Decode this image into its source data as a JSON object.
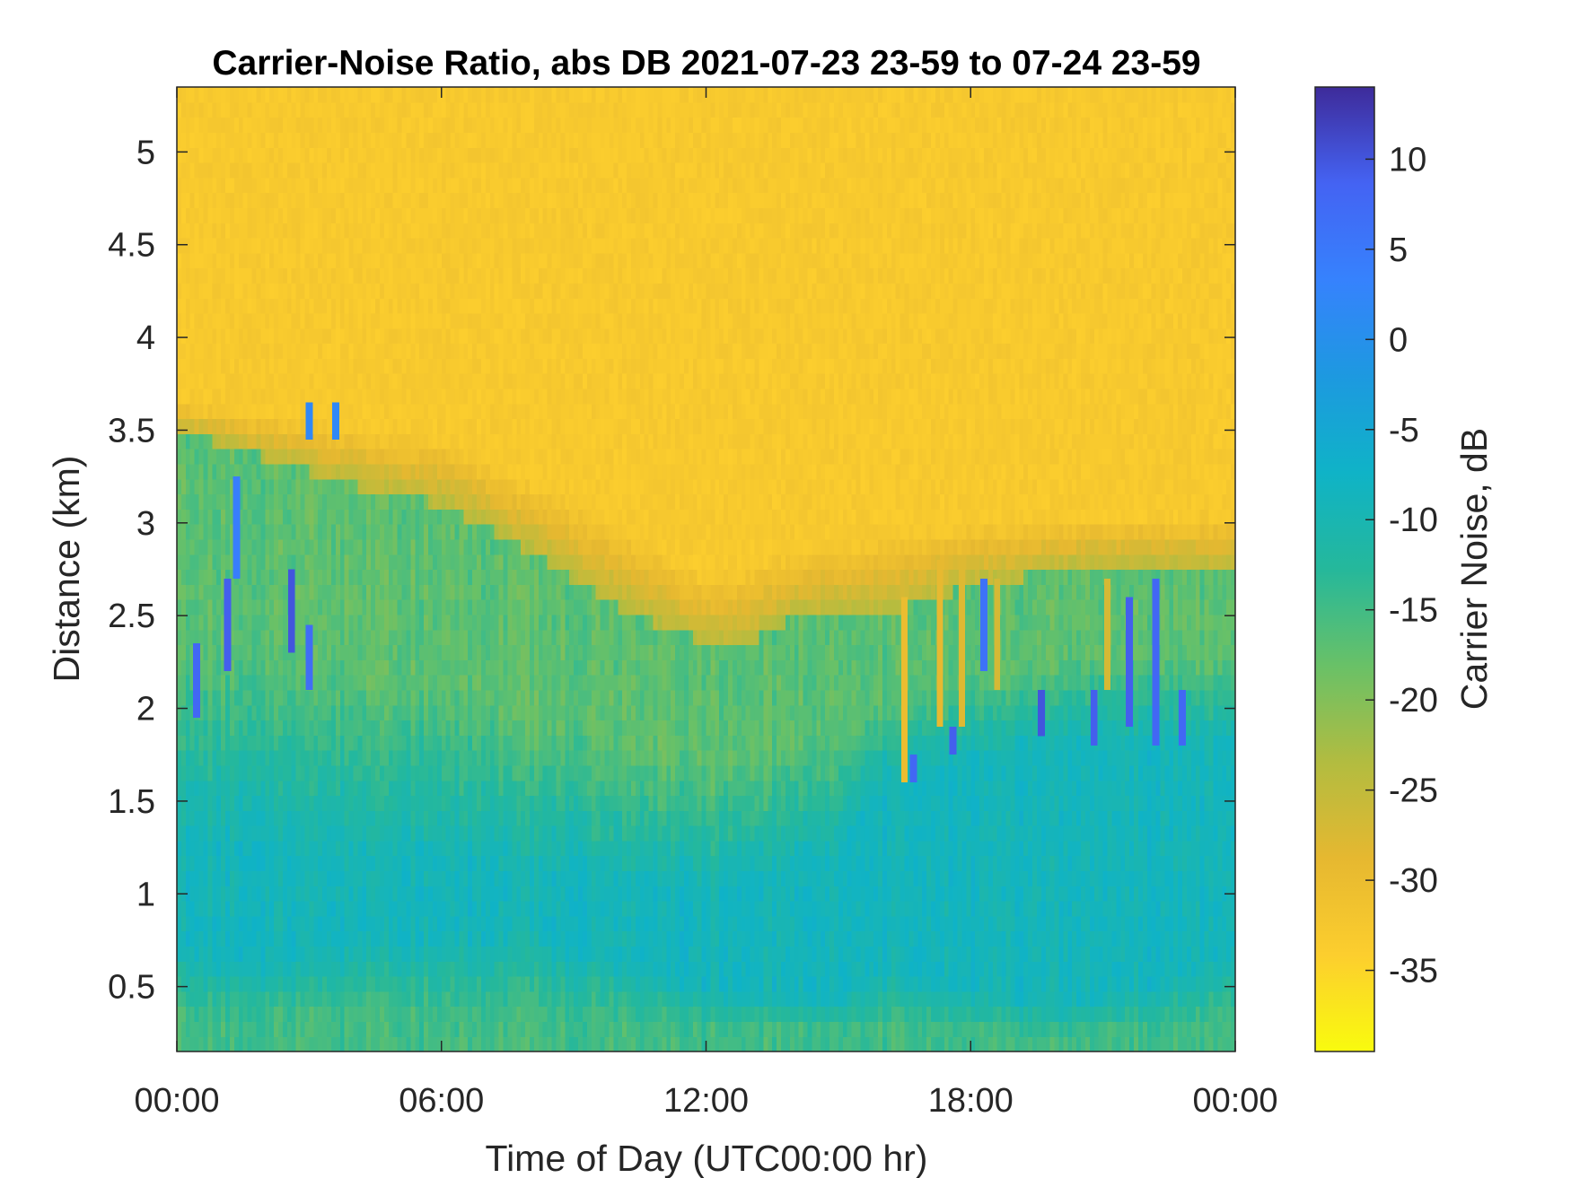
{
  "chart_data": {
    "type": "heatmap",
    "title": "Carrier-Noise Ratio, abs DB 2021-07-23 23-59 to 07-24 23-59",
    "xlabel": "Time of Day (UTC00:00 hr)",
    "ylabel": "Distance (km)",
    "colorbar_label": "Carrier Noise, dB",
    "xlim": [
      0,
      24
    ],
    "ylim": [
      0.15,
      5.35
    ],
    "clim": [
      -39.5,
      14
    ],
    "x_ticks": [
      0,
      6,
      12,
      18,
      24
    ],
    "x_tick_labels": [
      "00:00",
      "06:00",
      "12:00",
      "18:00",
      "00:00"
    ],
    "y_ticks": [
      0.5,
      1,
      1.5,
      2,
      2.5,
      3,
      3.5,
      4,
      4.5,
      5
    ],
    "y_tick_labels": [
      "0.5",
      "1",
      "1.5",
      "2",
      "2.5",
      "3",
      "3.5",
      "4",
      "4.5",
      "5"
    ],
    "colorbar_ticks": [
      10,
      5,
      0,
      -5,
      -10,
      -15,
      -20,
      -25,
      -30,
      -35
    ],
    "colorbar_tick_labels": [
      "10",
      "5",
      "0",
      "-5",
      "-10",
      "-15",
      "-20",
      "-25",
      "-30",
      "-35"
    ],
    "colormap": "parula",
    "colormap_stops": [
      "#f9fb0e",
      "#fcce2e",
      "#e6b830",
      "#b2bc40",
      "#69c167",
      "#25b89b",
      "#0fb3c7",
      "#1d99e0",
      "#3682fd",
      "#4463f3",
      "#3e2b9a"
    ],
    "grid": false,
    "background_level_db": -33,
    "regimes": [
      {
        "name": "upper",
        "level_db": -33
      },
      {
        "name": "transition",
        "level_db": -24
      },
      {
        "name": "middle",
        "level_db": -17
      },
      {
        "name": "low",
        "level_db": -9
      },
      {
        "name": "surface",
        "level_db": -15
      }
    ],
    "boundary_height_km": [
      {
        "x": 0,
        "y": 3.5
      },
      {
        "x": 2,
        "y": 3.35
      },
      {
        "x": 4,
        "y": 3.2
      },
      {
        "x": 6,
        "y": 3.1
      },
      {
        "x": 8,
        "y": 2.85
      },
      {
        "x": 10,
        "y": 2.55
      },
      {
        "x": 12,
        "y": 2.35
      },
      {
        "x": 13,
        "y": 2.35
      },
      {
        "x": 14,
        "y": 2.5
      },
      {
        "x": 16,
        "y": 2.5
      },
      {
        "x": 17,
        "y": 2.6
      },
      {
        "x": 18,
        "y": 2.65
      },
      {
        "x": 20,
        "y": 2.75
      },
      {
        "x": 22,
        "y": 2.75
      },
      {
        "x": 24,
        "y": 2.75
      }
    ],
    "transition_top_km": [
      {
        "x": 0,
        "y": 3.65
      },
      {
        "x": 6,
        "y": 3.45
      },
      {
        "x": 10,
        "y": 3.0
      },
      {
        "x": 12,
        "y": 2.7
      },
      {
        "x": 14,
        "y": 2.85
      },
      {
        "x": 18,
        "y": 3.0
      },
      {
        "x": 24,
        "y": 3.05
      }
    ],
    "strong_layer_km": [
      {
        "x": 0,
        "y": [
          0.7,
          1.25
        ]
      },
      {
        "x": 2,
        "y": [
          0.65,
          1.25
        ]
      },
      {
        "x": 4,
        "y": [
          0.75,
          1.2
        ]
      },
      {
        "x": 8,
        "y": [
          0.8,
          1.1
        ]
      },
      {
        "x": 12,
        "y": [
          0.5,
          1.0
        ]
      },
      {
        "x": 15,
        "y": [
          0.45,
          1.2
        ]
      },
      {
        "x": 16,
        "y": [
          0.6,
          1.6
        ]
      },
      {
        "x": 18,
        "y": [
          0.5,
          1.7
        ]
      },
      {
        "x": 20,
        "y": [
          0.4,
          1.8
        ]
      },
      {
        "x": 22,
        "y": [
          0.5,
          1.8
        ]
      },
      {
        "x": 24,
        "y": [
          0.7,
          1.8
        ]
      }
    ],
    "high_values": [
      {
        "x": 0.45,
        "y": [
          1.95,
          2.35
        ],
        "value_db": 8
      },
      {
        "x": 1.15,
        "y": [
          2.2,
          2.7
        ],
        "value_db": 9
      },
      {
        "x": 1.35,
        "y": [
          2.7,
          3.25
        ],
        "value_db": 4
      },
      {
        "x": 2.6,
        "y": [
          2.3,
          2.75
        ],
        "value_db": 10
      },
      {
        "x": 3.0,
        "y": [
          2.1,
          2.45
        ],
        "value_db": 7
      },
      {
        "x": 3.0,
        "y": [
          3.45,
          3.65
        ],
        "value_db": 2
      },
      {
        "x": 3.6,
        "y": [
          3.45,
          3.65
        ],
        "value_db": 2
      },
      {
        "x": 16.7,
        "y": [
          1.6,
          1.75
        ],
        "value_db": 8
      },
      {
        "x": 17.6,
        "y": [
          1.75,
          1.9
        ],
        "value_db": 9
      },
      {
        "x": 18.3,
        "y": [
          2.2,
          2.7
        ],
        "value_db": 6
      },
      {
        "x": 19.6,
        "y": [
          1.85,
          2.1
        ],
        "value_db": 10
      },
      {
        "x": 20.8,
        "y": [
          1.8,
          2.1
        ],
        "value_db": 9
      },
      {
        "x": 21.6,
        "y": [
          1.9,
          2.6
        ],
        "value_db": 9
      },
      {
        "x": 22.2,
        "y": [
          1.8,
          2.7
        ],
        "value_db": 8
      },
      {
        "x": 22.8,
        "y": [
          1.8,
          2.1
        ],
        "value_db": 8
      }
    ],
    "intrusions": [
      {
        "x": 16.5,
        "y": [
          1.6,
          2.6
        ],
        "value_db": -30
      },
      {
        "x": 17.3,
        "y": [
          1.9,
          2.8
        ],
        "value_db": -29
      },
      {
        "x": 17.8,
        "y": [
          1.9,
          2.8
        ],
        "value_db": -28
      },
      {
        "x": 18.6,
        "y": [
          2.1,
          2.7
        ],
        "value_db": -27
      },
      {
        "x": 21.1,
        "y": [
          2.1,
          2.7
        ],
        "value_db": -27
      }
    ]
  }
}
